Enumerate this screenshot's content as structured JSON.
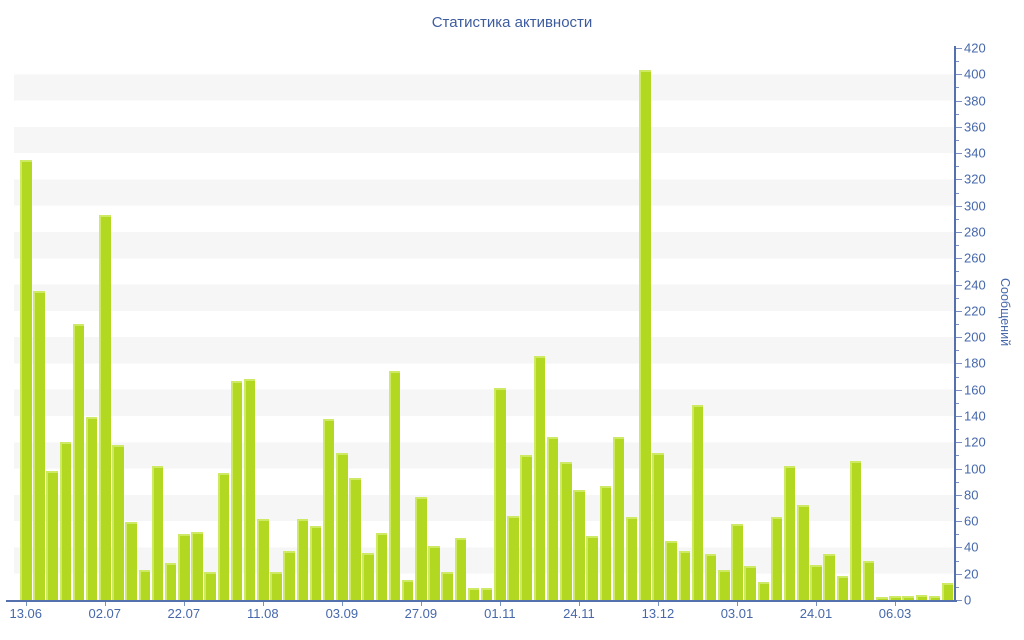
{
  "title": "Статистика активности",
  "chart_data": {
    "type": "bar",
    "title": "Статистика активности",
    "ylabel": "Сообщений",
    "xlabel": "",
    "values": [
      335,
      235,
      98,
      120,
      210,
      139,
      293,
      118,
      59,
      23,
      102,
      28,
      50,
      52,
      21,
      97,
      167,
      168,
      62,
      21,
      37,
      62,
      56,
      138,
      112,
      93,
      36,
      51,
      174,
      15,
      78,
      41,
      21,
      47,
      9,
      9,
      161,
      64,
      110,
      186,
      124,
      105,
      84,
      49,
      87,
      124,
      63,
      403,
      112,
      45,
      37,
      148,
      35,
      23,
      58,
      26,
      14,
      63,
      102,
      72,
      27,
      35,
      18,
      106,
      30,
      2,
      3,
      3,
      4,
      3,
      13
    ],
    "x_tick_labels": [
      "13.06",
      "02.07",
      "22.07",
      "11.08",
      "03.09",
      "27.09",
      "01.11",
      "24.11",
      "13.12",
      "03.01",
      "24.01",
      "06.03"
    ],
    "x_label_every": 6,
    "ylim": [
      0,
      420
    ],
    "y_tick_step": 20,
    "y_minor_tick_step": 10,
    "legend": "none",
    "gridlines": "horizontal striped bands every 20 units",
    "colors": {
      "bar": "#b2d821",
      "bar_highlight": "#cee963",
      "axis": "#5470ad",
      "tick": "#7b8fc0",
      "tick_label": "#4668ab",
      "title": "#3d5c9e",
      "stripe": "#f6f6f6",
      "background": "#ffffff"
    }
  }
}
